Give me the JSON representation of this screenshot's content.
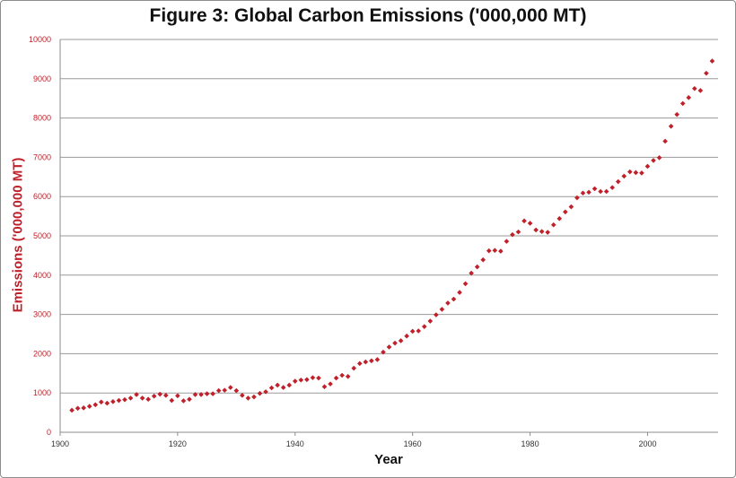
{
  "chart_data": {
    "type": "scatter",
    "title": "Figure 3: Global Carbon Emissions ('000,000 MT)",
    "xlabel": "Year",
    "ylabel": "Emissions ('000,000 MT)",
    "xlim": [
      1900,
      2012
    ],
    "ylim": [
      0,
      10000
    ],
    "x_ticks": [
      1900,
      1920,
      1940,
      1960,
      1980,
      2000
    ],
    "y_ticks": [
      0,
      1000,
      2000,
      3000,
      4000,
      5000,
      6000,
      7000,
      8000,
      9000,
      10000
    ],
    "grid": "horizontal",
    "marker_color": "#c0202a",
    "series": [
      {
        "points": [
          [
            1902,
            560
          ],
          [
            1903,
            610
          ],
          [
            1904,
            620
          ],
          [
            1905,
            660
          ],
          [
            1906,
            700
          ],
          [
            1907,
            770
          ],
          [
            1908,
            740
          ],
          [
            1909,
            780
          ],
          [
            1910,
            810
          ],
          [
            1911,
            830
          ],
          [
            1912,
            870
          ],
          [
            1913,
            960
          ],
          [
            1914,
            870
          ],
          [
            1915,
            840
          ],
          [
            1916,
            920
          ],
          [
            1917,
            970
          ],
          [
            1918,
            940
          ],
          [
            1919,
            810
          ],
          [
            1920,
            930
          ],
          [
            1921,
            800
          ],
          [
            1922,
            840
          ],
          [
            1923,
            960
          ],
          [
            1924,
            960
          ],
          [
            1925,
            980
          ],
          [
            1926,
            980
          ],
          [
            1927,
            1060
          ],
          [
            1928,
            1070
          ],
          [
            1929,
            1140
          ],
          [
            1930,
            1060
          ],
          [
            1931,
            940
          ],
          [
            1932,
            870
          ],
          [
            1933,
            900
          ],
          [
            1934,
            990
          ],
          [
            1935,
            1030
          ],
          [
            1936,
            1130
          ],
          [
            1937,
            1200
          ],
          [
            1938,
            1140
          ],
          [
            1939,
            1200
          ],
          [
            1940,
            1300
          ],
          [
            1941,
            1330
          ],
          [
            1942,
            1340
          ],
          [
            1943,
            1390
          ],
          [
            1944,
            1380
          ],
          [
            1945,
            1160
          ],
          [
            1946,
            1230
          ],
          [
            1947,
            1380
          ],
          [
            1948,
            1450
          ],
          [
            1949,
            1420
          ],
          [
            1950,
            1630
          ],
          [
            1951,
            1750
          ],
          [
            1952,
            1790
          ],
          [
            1953,
            1820
          ],
          [
            1954,
            1850
          ],
          [
            1955,
            2040
          ],
          [
            1956,
            2170
          ],
          [
            1957,
            2270
          ],
          [
            1958,
            2330
          ],
          [
            1959,
            2450
          ],
          [
            1960,
            2570
          ],
          [
            1961,
            2580
          ],
          [
            1962,
            2690
          ],
          [
            1963,
            2830
          ],
          [
            1964,
            2990
          ],
          [
            1965,
            3130
          ],
          [
            1966,
            3290
          ],
          [
            1967,
            3390
          ],
          [
            1968,
            3560
          ],
          [
            1969,
            3780
          ],
          [
            1970,
            4050
          ],
          [
            1971,
            4210
          ],
          [
            1972,
            4390
          ],
          [
            1973,
            4620
          ],
          [
            1974,
            4630
          ],
          [
            1975,
            4610
          ],
          [
            1976,
            4860
          ],
          [
            1977,
            5030
          ],
          [
            1978,
            5100
          ],
          [
            1979,
            5380
          ],
          [
            1980,
            5320
          ],
          [
            1981,
            5150
          ],
          [
            1982,
            5110
          ],
          [
            1983,
            5090
          ],
          [
            1984,
            5280
          ],
          [
            1985,
            5440
          ],
          [
            1986,
            5610
          ],
          [
            1987,
            5740
          ],
          [
            1988,
            5970
          ],
          [
            1989,
            6090
          ],
          [
            1990,
            6110
          ],
          [
            1991,
            6200
          ],
          [
            1992,
            6130
          ],
          [
            1993,
            6130
          ],
          [
            1994,
            6230
          ],
          [
            1995,
            6380
          ],
          [
            1996,
            6520
          ],
          [
            1997,
            6630
          ],
          [
            1998,
            6610
          ],
          [
            1999,
            6600
          ],
          [
            2000,
            6770
          ],
          [
            2001,
            6920
          ],
          [
            2002,
            6990
          ],
          [
            2003,
            7410
          ],
          [
            2004,
            7790
          ],
          [
            2005,
            8090
          ],
          [
            2006,
            8370
          ],
          [
            2007,
            8520
          ],
          [
            2008,
            8750
          ],
          [
            2009,
            8700
          ],
          [
            2010,
            9140
          ],
          [
            2011,
            9450
          ]
        ]
      }
    ]
  }
}
